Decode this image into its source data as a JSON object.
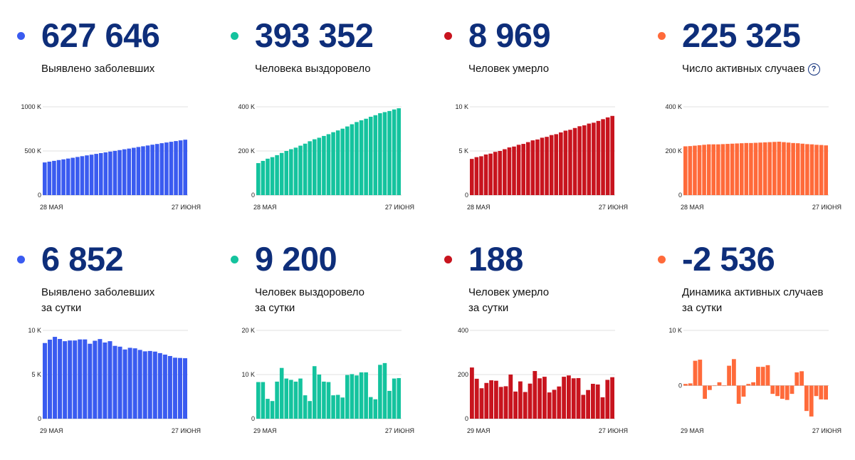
{
  "cards": [
    {
      "value": "627 646",
      "caption_line1": "Выявлено заболевших",
      "caption_line2": "",
      "help": "",
      "color": "#3a5bf0",
      "chart_data": {
        "type": "bar",
        "x_start": "28 МАЯ",
        "x_end": "27 ИЮНЯ",
        "yticks": [
          {
            "v": 0,
            "label": "0"
          },
          {
            "v": 500,
            "label": "500 K"
          },
          {
            "v": 1000,
            "label": "1000 K"
          }
        ],
        "ylim": [
          0,
          1000
        ],
        "unit": "thousand",
        "values": [
          370,
          379,
          388,
          397,
          405,
          414,
          423,
          432,
          441,
          450,
          458,
          467,
          476,
          484,
          493,
          501,
          510,
          519,
          527,
          536,
          545,
          553,
          562,
          571,
          579,
          588,
          596,
          604,
          612,
          620,
          627.6
        ]
      }
    },
    {
      "value": "393 352",
      "caption_line1": "Человека выздоровело",
      "caption_line2": "",
      "help": "",
      "color": "#14c39e",
      "chart_data": {
        "type": "bar",
        "x_start": "28 МАЯ",
        "x_end": "27 ИЮНЯ",
        "yticks": [
          {
            "v": 0,
            "label": "0"
          },
          {
            "v": 200,
            "label": "200 K"
          },
          {
            "v": 400,
            "label": "400 K"
          }
        ],
        "ylim": [
          0,
          400
        ],
        "unit": "thousand",
        "values": [
          145,
          155,
          165,
          172,
          181,
          191,
          200,
          208,
          215,
          224,
          233,
          244,
          253,
          260,
          268,
          276,
          285,
          293,
          301,
          311,
          321,
          331,
          339,
          346,
          355,
          362,
          371,
          376,
          381,
          388,
          393.4
        ]
      }
    },
    {
      "value": "8 969",
      "caption_line1": "Человек умерло",
      "caption_line2": "",
      "help": "",
      "color": "#c8141e",
      "chart_data": {
        "type": "bar",
        "x_start": "28 МАЯ",
        "x_end": "27 ИЮНЯ",
        "yticks": [
          {
            "v": 0,
            "label": "0"
          },
          {
            "v": 5,
            "label": "5 K"
          },
          {
            "v": 10,
            "label": "10 K"
          }
        ],
        "ylim": [
          0,
          10
        ],
        "unit": "thousand",
        "values": [
          4.1,
          4.3,
          4.4,
          4.6,
          4.7,
          4.9,
          5.0,
          5.2,
          5.4,
          5.5,
          5.7,
          5.8,
          6.0,
          6.2,
          6.3,
          6.5,
          6.6,
          6.8,
          6.9,
          7.1,
          7.3,
          7.4,
          7.6,
          7.8,
          7.9,
          8.1,
          8.2,
          8.4,
          8.6,
          8.8,
          8.969
        ]
      }
    },
    {
      "value": "225 325",
      "caption_line1": "Число активных случаев",
      "caption_line2": "",
      "help": "?",
      "color": "#ff6a3a",
      "chart_data": {
        "type": "bar",
        "x_start": "28 МАЯ",
        "x_end": "27 ИЮНЯ",
        "yticks": [
          {
            "v": 0,
            "label": "0"
          },
          {
            "v": 200,
            "label": "200 K"
          },
          {
            "v": 400,
            "label": "400 K"
          }
        ],
        "ylim": [
          0,
          400
        ],
        "unit": "thousand",
        "values": [
          221,
          222,
          224,
          226,
          228,
          230,
          230,
          230,
          231,
          232,
          233,
          234,
          235,
          236,
          236,
          237,
          238,
          239,
          240,
          241,
          242,
          240,
          238,
          236,
          235,
          233,
          231,
          230,
          228,
          227,
          225.3
        ]
      }
    },
    {
      "value": "6 852",
      "caption_line1": "Выявлено заболевших",
      "caption_line2": "за сутки",
      "help": "",
      "color": "#3a5bf0",
      "chart_data": {
        "type": "bar",
        "x_start": "29 МАЯ",
        "x_end": "27 ИЮНЯ",
        "yticks": [
          {
            "v": 0,
            "label": "0"
          },
          {
            "v": 5,
            "label": "5 K"
          },
          {
            "v": 10,
            "label": "10 K"
          }
        ],
        "ylim": [
          0,
          10
        ],
        "unit": "thousand",
        "values": [
          8.57,
          8.95,
          9.27,
          9.03,
          8.78,
          8.86,
          8.86,
          8.98,
          8.98,
          8.49,
          8.83,
          9.02,
          8.63,
          8.78,
          8.25,
          8.16,
          7.84,
          8.03,
          7.97,
          7.79,
          7.63,
          7.67,
          7.6,
          7.43,
          7.26,
          7.1,
          6.91,
          6.88,
          6.85
        ]
      }
    },
    {
      "value": "9 200",
      "caption_line1": "Человек выздоровело",
      "caption_line2": "за сутки",
      "help": "",
      "color": "#14c39e",
      "chart_data": {
        "type": "bar",
        "x_start": "29 МАЯ",
        "x_end": "27 ИЮНЯ",
        "yticks": [
          {
            "v": 0,
            "label": "0"
          },
          {
            "v": 10,
            "label": "10 K"
          },
          {
            "v": 20,
            "label": "20 K"
          }
        ],
        "ylim": [
          0,
          20
        ],
        "unit": "thousand",
        "values": [
          8.3,
          8.3,
          4.5,
          4.0,
          8.4,
          11.5,
          9.1,
          8.8,
          8.4,
          9.1,
          5.3,
          4.0,
          11.9,
          10.0,
          8.4,
          8.3,
          5.3,
          5.4,
          4.8,
          9.9,
          10.1,
          9.8,
          10.5,
          10.5,
          4.9,
          4.4,
          12.2,
          12.6,
          6.3,
          9.1,
          9.2
        ]
      }
    },
    {
      "value": "188",
      "caption_line1": "Человек умерло",
      "caption_line2": "за сутки",
      "help": "",
      "color": "#c8141e",
      "chart_data": {
        "type": "bar",
        "x_start": "29 МАЯ",
        "x_end": "27 ИЮНЯ",
        "yticks": [
          {
            "v": 0,
            "label": "0"
          },
          {
            "v": 200,
            "label": "200"
          },
          {
            "v": 400,
            "label": "400"
          }
        ],
        "ylim": [
          0,
          400
        ],
        "unit": "",
        "values": [
          232,
          181,
          138,
          162,
          174,
          172,
          144,
          147,
          200,
          123,
          169,
          121,
          159,
          216,
          183,
          190,
          119,
          131,
          146,
          190,
          196,
          183,
          184,
          108,
          130,
          158,
          155,
          97,
          176,
          188
        ]
      }
    },
    {
      "value": "-2 536",
      "caption_line1": "Динамика активных случаев",
      "caption_line2": "за сутки",
      "help": "",
      "color": "#ff6a3a",
      "chart_data": {
        "type": "bar",
        "x_start": "29 МАЯ",
        "x_end": "27 ИЮНЯ",
        "yticks": [
          {
            "v": 0,
            "label": "0"
          },
          {
            "v": 10,
            "label": "10 K"
          }
        ],
        "ylim": [
          -6,
          10
        ],
        "unit": "thousand",
        "values": [
          0.3,
          0.4,
          4.5,
          4.7,
          -2.4,
          -0.8,
          0,
          0.6,
          0,
          3.6,
          4.8,
          -3.3,
          -2.0,
          0.3,
          0.6,
          3.4,
          3.4,
          3.7,
          -1.5,
          -1.9,
          -2.4,
          -2.6,
          -1.5,
          2.4,
          2.6,
          -4.6,
          -5.6,
          -1.9,
          -2.5,
          -2.536
        ]
      }
    }
  ]
}
